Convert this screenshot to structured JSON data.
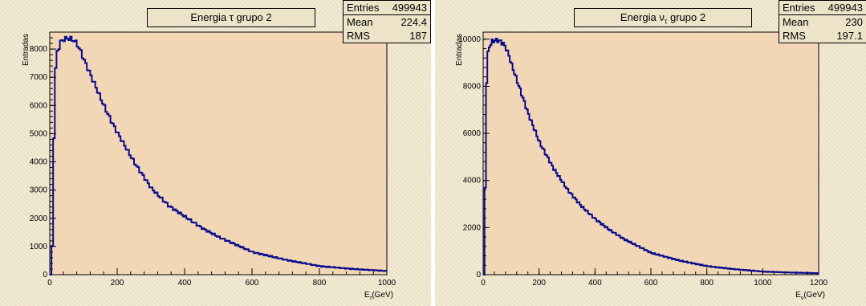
{
  "colors": {
    "canvas": "#ede3c9",
    "frame": "#f2d7b6",
    "line": "#0a0a8c"
  },
  "chart_data": [
    {
      "type": "line",
      "title": "Energia τ grupo 2",
      "title_prefix": "Energia ",
      "title_symbol": "τ",
      "title_sub": "",
      "title_suffix": " grupo 2",
      "ylabel": "Entradas",
      "xlabel": "E",
      "xlabel_sub": "τ",
      "xlabel_unit": "(GeV)",
      "xlim": [
        0,
        1000
      ],
      "ylim": [
        0,
        8600
      ],
      "xticks": [
        0,
        200,
        400,
        600,
        800,
        1000
      ],
      "yticks": [
        0,
        1000,
        2000,
        3000,
        4000,
        5000,
        6000,
        7000,
        8000
      ],
      "stats": {
        "entries_label": "Entries",
        "entries": "499943",
        "mean_label": "Mean",
        "mean": "224.4",
        "rms_label": "RMS",
        "rms": "187"
      },
      "x": [
        0,
        5,
        10,
        15,
        20,
        30,
        40,
        50,
        60,
        70,
        80,
        90,
        100,
        120,
        140,
        160,
        180,
        200,
        250,
        300,
        350,
        400,
        450,
        500,
        600,
        700,
        800,
        900,
        1000
      ],
      "y": [
        0,
        1000,
        4900,
        7300,
        7900,
        8250,
        8350,
        8380,
        8360,
        8300,
        8150,
        7900,
        7600,
        7050,
        6500,
        5950,
        5450,
        5000,
        3950,
        3050,
        2450,
        2050,
        1650,
        1330,
        800,
        520,
        300,
        200,
        130
      ]
    },
    {
      "type": "line",
      "title": "Energia ντ grupo 2",
      "title_prefix": "Energia ",
      "title_symbol": "ν",
      "title_sub": "τ",
      "title_suffix": " grupo 2",
      "ylabel": "Entradas",
      "xlabel": "E",
      "xlabel_sub": "ν",
      "xlabel_unit": "(GeV)",
      "xlim": [
        0,
        1200
      ],
      "ylim": [
        0,
        10300
      ],
      "xticks": [
        0,
        200,
        400,
        600,
        800,
        1000,
        1200
      ],
      "yticks": [
        0,
        2000,
        4000,
        6000,
        8000,
        10000
      ],
      "stats": {
        "entries_label": "Entries",
        "entries": "499943",
        "mean_label": "Mean",
        "mean": "230",
        "rms_label": "RMS",
        "rms": "197.1"
      },
      "x": [
        0,
        5,
        10,
        15,
        20,
        30,
        40,
        50,
        60,
        70,
        80,
        90,
        100,
        120,
        140,
        160,
        180,
        200,
        250,
        300,
        350,
        400,
        450,
        500,
        600,
        700,
        800,
        900,
        1000,
        1100,
        1200
      ],
      "y": [
        0,
        3700,
        8200,
        9400,
        9700,
        9900,
        9950,
        9950,
        9900,
        9800,
        9600,
        9300,
        8900,
        8200,
        7500,
        6800,
        6200,
        5600,
        4500,
        3600,
        2900,
        2350,
        1900,
        1520,
        920,
        600,
        360,
        230,
        130,
        90,
        60
      ]
    }
  ]
}
